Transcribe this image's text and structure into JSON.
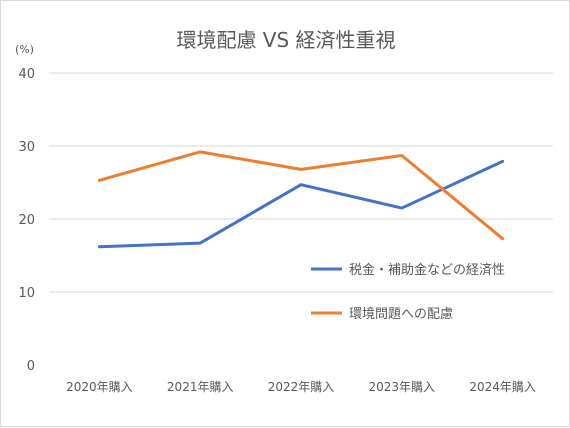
{
  "chart_data": {
    "type": "line",
    "title": "環境配慮 VS 経済性重視",
    "unit_label": "(%)",
    "categories": [
      "2020年購入",
      "2021年購入",
      "2022年購入",
      "2023年購入",
      "2024年購入"
    ],
    "ylim": [
      0,
      40
    ],
    "yticks": [
      0,
      10,
      20,
      30,
      40
    ],
    "grid": true,
    "legend_position": "right",
    "series": [
      {
        "name": "税金・補助金などの経済性",
        "color": "#4472c4",
        "values": [
          16.2,
          16.7,
          24.7,
          21.5,
          27.9
        ]
      },
      {
        "name": "環境問題への配慮",
        "color": "#ed7d31",
        "values": [
          25.3,
          29.2,
          26.8,
          28.7,
          17.3
        ]
      }
    ]
  }
}
